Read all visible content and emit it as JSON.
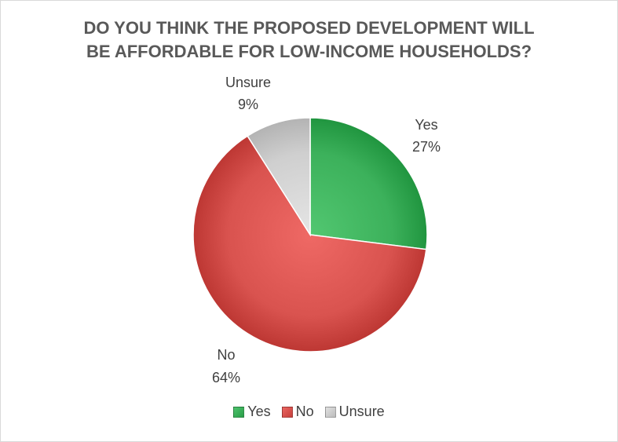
{
  "chart_data": {
    "type": "pie",
    "title_lines": [
      "DO YOU THINK THE PROPOSED DEVELOPMENT WILL",
      "BE AFFORDABLE FOR LOW-INCOME HOUSEHOLDS?"
    ],
    "slices": [
      {
        "name": "Yes",
        "value": 27,
        "label": "27%",
        "color": "#3cb15b"
      },
      {
        "name": "No",
        "value": 64,
        "label": "64%",
        "color": "#d9534f"
      },
      {
        "name": "Unsure",
        "value": 9,
        "label": "9%",
        "color": "#cfcfcf"
      }
    ],
    "legend": {
      "placement": "bottom",
      "items": [
        "Yes",
        "No",
        "Unsure"
      ]
    }
  }
}
